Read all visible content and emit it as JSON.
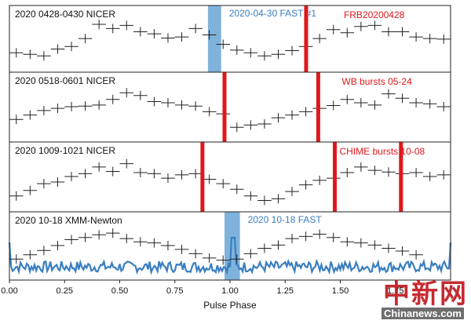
{
  "chart_data": {
    "type": "line",
    "xlabel": "Pulse Phase",
    "xlim": [
      0.0,
      2.0
    ],
    "x_ticks": [
      "0.00",
      "0.25",
      "0.50",
      "0.75",
      "1.00",
      "1.25",
      "1.50",
      "1.75"
    ],
    "bin_width": 0.0625,
    "colors": {
      "profile": "#222222",
      "fast": "#3a7ebf",
      "burst": "#e0181b",
      "band": "#6aa6d6",
      "frame": "#222222"
    },
    "panels": [
      {
        "label": "2020 0428-0430 NICER",
        "profile": [
          0.28,
          0.25,
          0.22,
          0.35,
          0.4,
          0.55,
          0.82,
          0.74,
          0.8,
          0.68,
          0.64,
          0.56,
          0.58,
          0.74,
          0.62,
          0.44,
          0.33,
          0.28,
          0.22,
          0.25,
          0.32,
          0.4,
          0.55,
          0.72,
          0.66,
          0.78,
          0.8,
          0.68,
          0.68,
          0.58,
          0.55,
          0.54,
          0.44,
          0.3
        ],
        "bands": [
          {
            "x0": 0.9,
            "x1": 0.96,
            "label": "2020-04-30 FAST #1"
          }
        ],
        "bursts": [
          {
            "x": 1.345,
            "label": "FRB20200428"
          }
        ]
      },
      {
        "label": "2020 0518-0601 NICER",
        "profile": [
          0.32,
          0.4,
          0.48,
          0.52,
          0.55,
          0.56,
          0.58,
          0.68,
          0.8,
          0.75,
          0.64,
          0.62,
          0.58,
          0.56,
          0.46,
          0.42,
          0.18,
          0.22,
          0.24,
          0.35,
          0.4,
          0.46,
          0.52,
          0.57,
          0.68,
          0.62,
          0.58,
          0.78,
          0.7,
          0.62,
          0.6,
          0.55,
          0.52,
          0.5,
          0.46,
          0.3,
          0.22,
          0.35
        ],
        "bands": [],
        "bursts": [
          {
            "x": 0.975,
            "label": ""
          },
          {
            "x": 1.4,
            "label": "WB bursts 05-24"
          }
        ]
      },
      {
        "label": "2020 1009-1021 NICER",
        "profile": [
          0.2,
          0.3,
          0.42,
          0.45,
          0.55,
          0.6,
          0.72,
          0.64,
          0.78,
          0.62,
          0.6,
          0.52,
          0.58,
          0.6,
          0.5,
          0.42,
          0.32,
          0.2,
          0.12,
          0.15,
          0.28,
          0.4,
          0.48,
          0.52,
          0.62,
          0.72,
          0.66,
          0.63,
          0.6,
          0.62,
          0.55,
          0.58,
          0.35,
          0.22,
          0.22
        ],
        "bands": [],
        "bursts": [
          {
            "x": 0.875,
            "label": ""
          },
          {
            "x": 1.475,
            "label": "CHIME bursts 10-08"
          },
          {
            "x": 1.775,
            "label": ""
          }
        ]
      },
      {
        "label": "2020 10-18 XMM-Newton",
        "profile": [
          0.3,
          0.38,
          0.46,
          0.55,
          0.66,
          0.7,
          0.75,
          0.78,
          0.68,
          0.62,
          0.6,
          0.55,
          0.48,
          0.4,
          0.32,
          0.28,
          0.3,
          0.4,
          0.5,
          0.56,
          0.68,
          0.72,
          0.76,
          0.7,
          0.62,
          0.6,
          0.56,
          0.5,
          0.45,
          0.38
        ],
        "bands": [
          {
            "x0": 0.975,
            "x1": 1.045,
            "label": "2020 10-18 FAST"
          }
        ],
        "bursts": []
      }
    ]
  },
  "watermark": {
    "cn": "中新网",
    "en": "Chinanews.com"
  }
}
